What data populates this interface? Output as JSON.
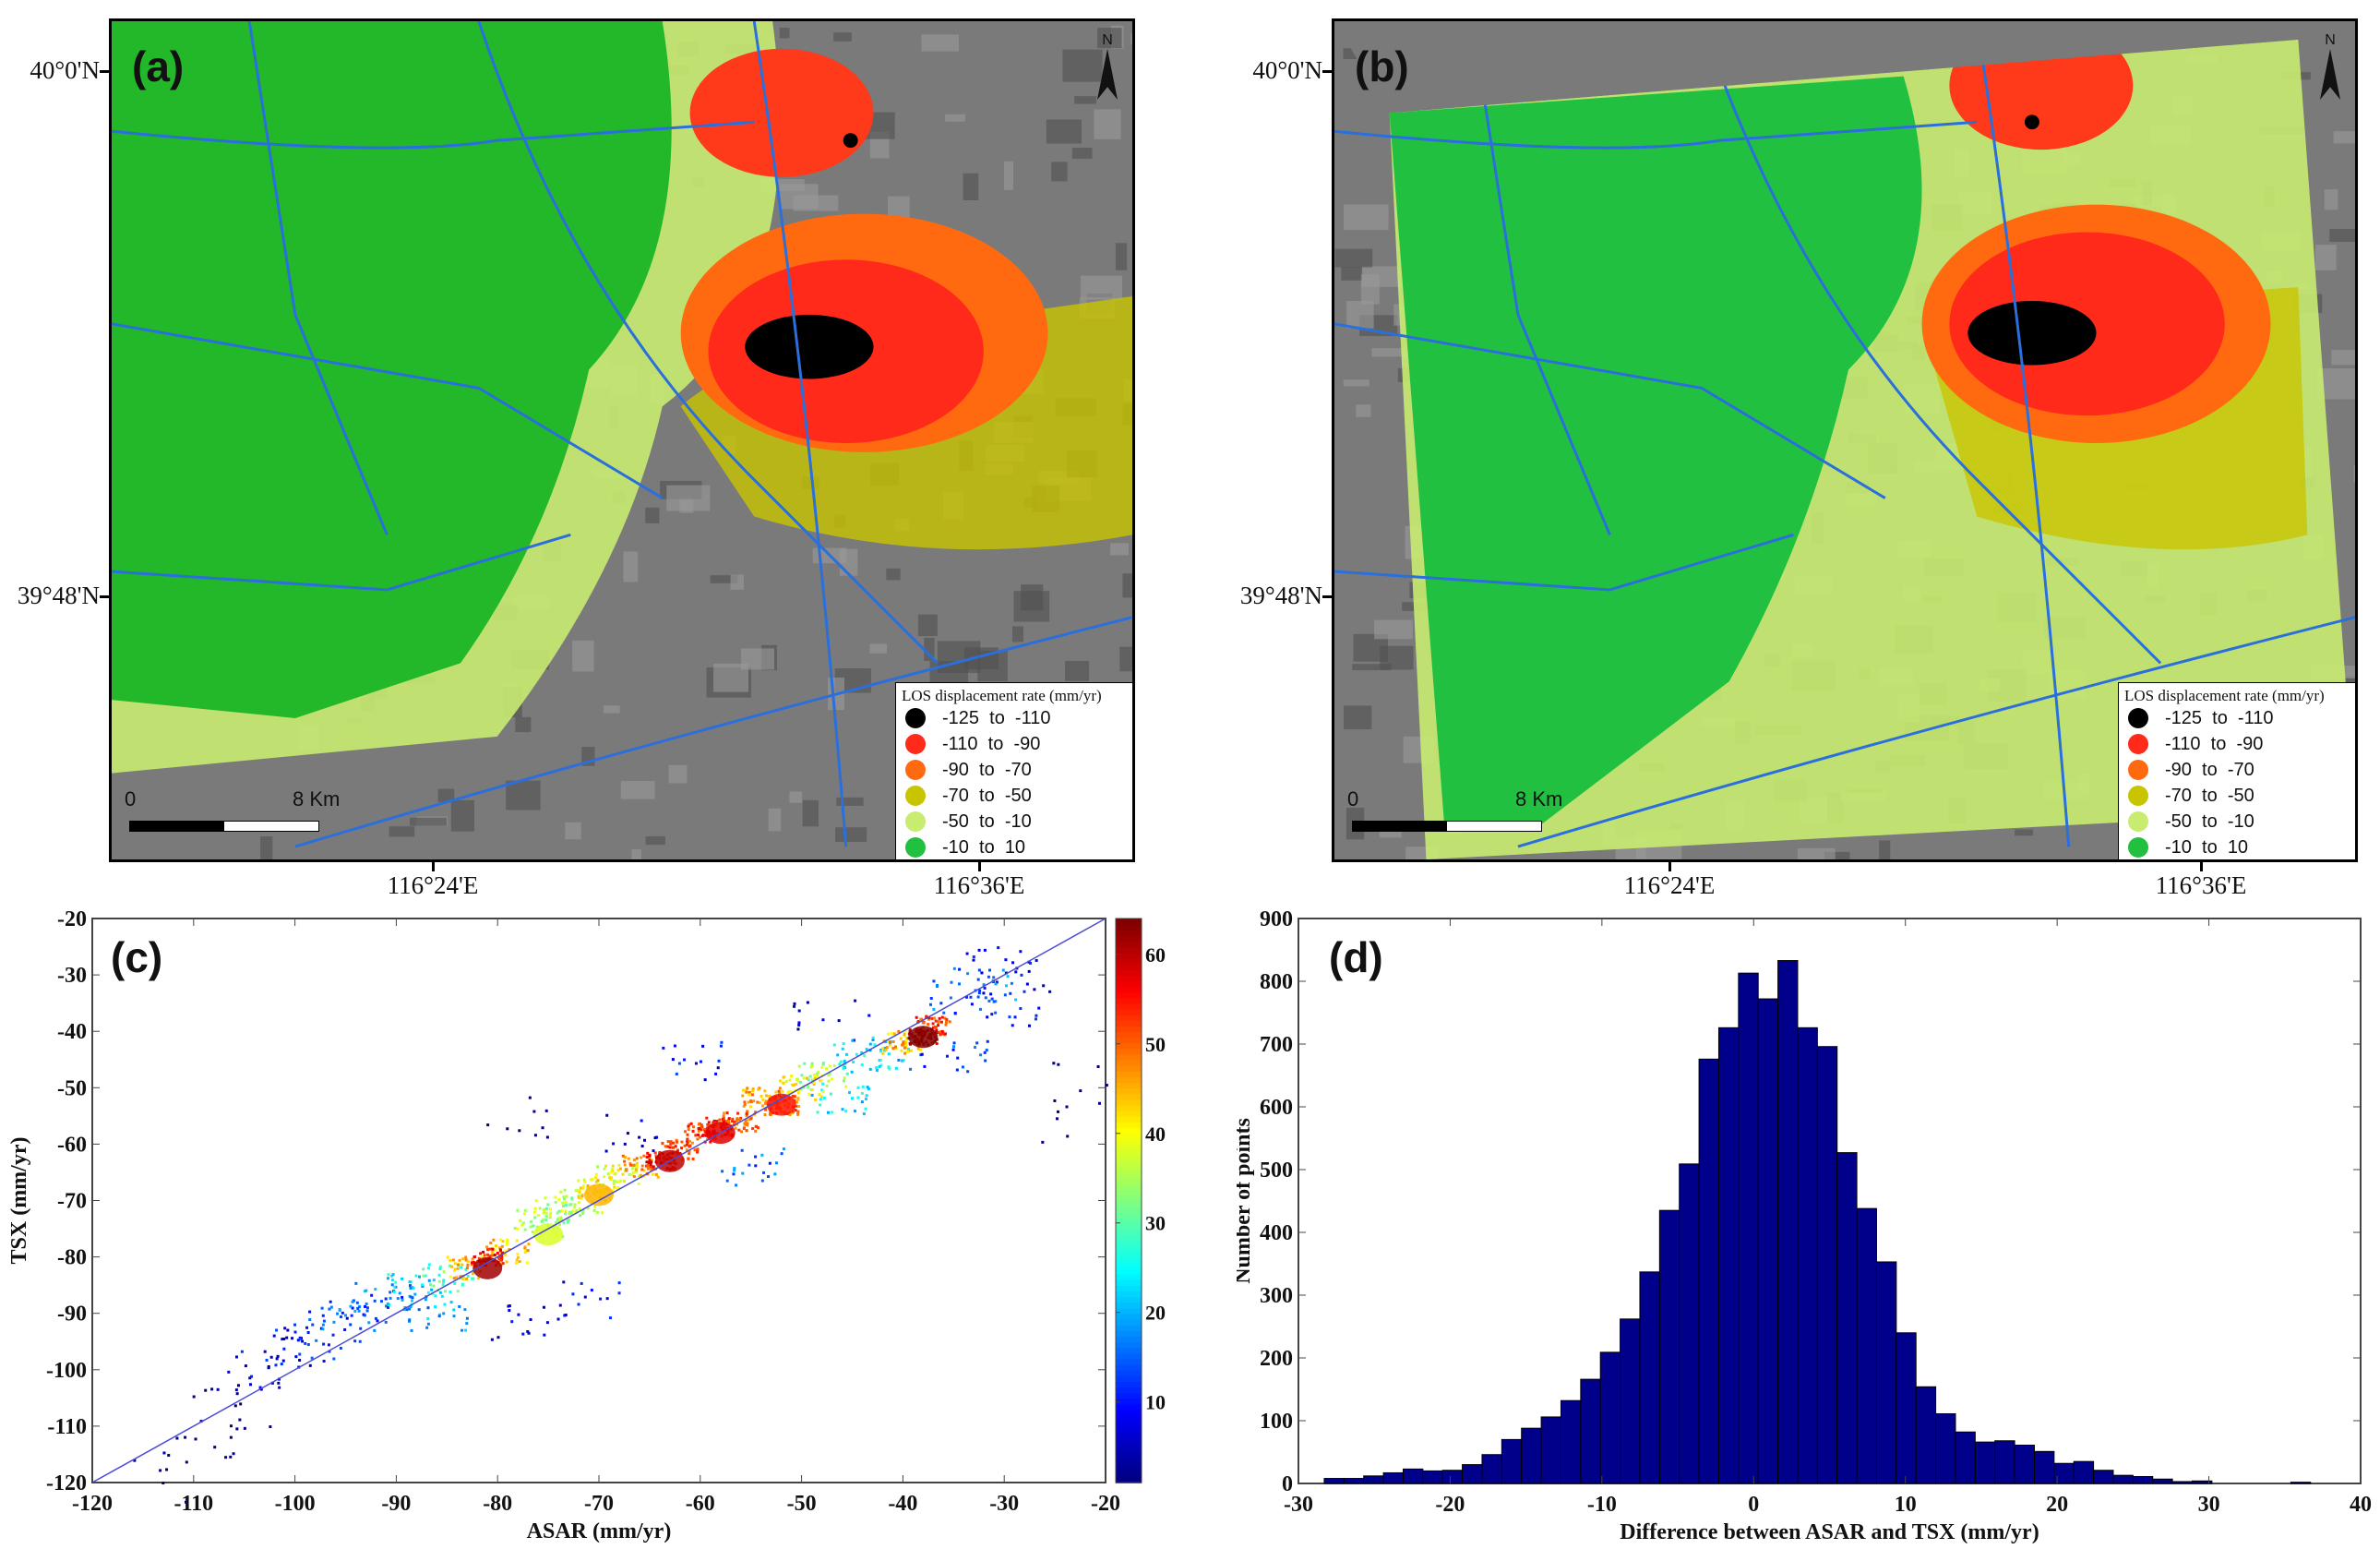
{
  "maps": [
    {
      "panel_label": "(a)",
      "lat_ticks": [
        "40°0'N",
        "39°48'N"
      ],
      "lon_ticks": [
        "116°24'E",
        "116°36'E"
      ],
      "north_label": "N",
      "scale": {
        "start": "0",
        "end": "8 Km"
      },
      "coverage": "full"
    },
    {
      "panel_label": "(b)",
      "lat_ticks": [
        "40°0'N",
        "39°48'N"
      ],
      "lon_ticks": [
        "116°24'E",
        "116°36'E"
      ],
      "north_label": "N",
      "scale": {
        "start": "0",
        "end": "8 Km"
      },
      "coverage": "tilted-swath"
    }
  ],
  "legend": {
    "title": "LOS displacement rate (mm/yr)",
    "items": [
      {
        "label": "-125  to  -110",
        "color": "#000000"
      },
      {
        "label": "-110  to  -90",
        "color": "#ff2a1a"
      },
      {
        "label": "-90  to  -70",
        "color": "#ff6a10"
      },
      {
        "label": "-70  to  -50",
        "color": "#c8c400"
      },
      {
        "label": "-50  to  -10",
        "color": "#c8ec70"
      },
      {
        "label": "-10  to  10",
        "color": "#22c040"
      }
    ]
  },
  "chart_data": [
    {
      "type": "scatter",
      "panel_label": "(c)",
      "xlabel": "ASAR (mm/yr)",
      "ylabel": "TSX (mm/yr)",
      "xlim": [
        -120,
        -20
      ],
      "ylim": [
        -120,
        -20
      ],
      "xticks": [
        "-120",
        "-110",
        "-100",
        "-90",
        "-80",
        "-70",
        "-60",
        "-50",
        "-40",
        "-30",
        "-20"
      ],
      "yticks": [
        "-20",
        "-30",
        "-40",
        "-50",
        "-60",
        "-70",
        "-80",
        "-90",
        "-100",
        "-110",
        "-120"
      ],
      "reference_line": {
        "from": [
          -120,
          -120
        ],
        "to": [
          -20,
          -20
        ],
        "color": "#4b4bd6"
      },
      "colorbar": {
        "range": [
          1,
          64
        ],
        "ticks": [
          "10",
          "20",
          "30",
          "40",
          "50",
          "60"
        ],
        "colormap": "jet"
      },
      "hotspots": [
        {
          "x": -81,
          "y": -82,
          "density": 62
        },
        {
          "x": -63,
          "y": -63,
          "density": 60
        },
        {
          "x": -58,
          "y": -58,
          "density": 58
        },
        {
          "x": -52,
          "y": -53,
          "density": 55
        },
        {
          "x": -38,
          "y": -41,
          "density": 64
        },
        {
          "x": -70,
          "y": -69,
          "density": 45
        },
        {
          "x": -75,
          "y": -76,
          "density": 38
        }
      ],
      "points_sample": [
        [
          -112,
          -120,
          3
        ],
        [
          -110,
          -112,
          5
        ],
        [
          -108,
          -106,
          6
        ],
        [
          -106,
          -111,
          4
        ],
        [
          -104,
          -101,
          10
        ],
        [
          -102,
          -98,
          12
        ],
        [
          -100,
          -96,
          14
        ],
        [
          -98,
          -95,
          16
        ],
        [
          -96,
          -92,
          18
        ],
        [
          -94,
          -91,
          20
        ],
        [
          -92,
          -88,
          18
        ],
        [
          -90,
          -88,
          22
        ],
        [
          -88,
          -86,
          28
        ],
        [
          -86,
          -90,
          24
        ],
        [
          -85,
          -84,
          35
        ],
        [
          -83,
          -82,
          50
        ],
        [
          -81,
          -80,
          60
        ],
        [
          -79,
          -79,
          48
        ],
        [
          -78,
          -55,
          6
        ],
        [
          -77,
          -92,
          12
        ],
        [
          -76,
          -74,
          40
        ],
        [
          -74,
          -72,
          40
        ],
        [
          -72,
          -70,
          42
        ],
        [
          -71,
          -88,
          14
        ],
        [
          -70,
          -68,
          46
        ],
        [
          -68,
          -66,
          44
        ],
        [
          -68,
          -58,
          10
        ],
        [
          -66,
          -64,
          52
        ],
        [
          -64,
          -63,
          60
        ],
        [
          -62,
          -61,
          56
        ],
        [
          -61,
          -45,
          14
        ],
        [
          -60,
          -58,
          58
        ],
        [
          -58,
          -57,
          58
        ],
        [
          -56,
          -56,
          55
        ],
        [
          -55,
          -64,
          20
        ],
        [
          -54,
          -52,
          52
        ],
        [
          -52,
          -53,
          55
        ],
        [
          -50,
          -50,
          46
        ],
        [
          -48,
          -48,
          40
        ],
        [
          -47,
          -38,
          10
        ],
        [
          -46,
          -52,
          28
        ],
        [
          -44,
          -45,
          30
        ],
        [
          -42,
          -44,
          26
        ],
        [
          -40,
          -42,
          50
        ],
        [
          -38,
          -41,
          64
        ],
        [
          -37,
          -39,
          58
        ],
        [
          -35,
          -45,
          18
        ],
        [
          -34,
          -34,
          20
        ],
        [
          -32,
          -32,
          22
        ],
        [
          -31,
          -28,
          12
        ],
        [
          -30,
          -36,
          14
        ],
        [
          -29,
          -30,
          10
        ],
        [
          -27,
          -56,
          2
        ],
        [
          -22,
          -49,
          2
        ]
      ]
    },
    {
      "type": "bar",
      "panel_label": "(d)",
      "xlabel": "Difference between ASAR and TSX (mm/yr)",
      "ylabel": "Number of points",
      "xlim": [
        -30,
        40
      ],
      "ylim": [
        0,
        900
      ],
      "xticks": [
        "-30",
        "-20",
        "-10",
        "0",
        "10",
        "20",
        "30",
        "40"
      ],
      "yticks": [
        "0",
        "100",
        "200",
        "300",
        "400",
        "500",
        "600",
        "700",
        "800",
        "900"
      ],
      "bin_start": -28.3,
      "bin_width": 1.3,
      "counts": [
        8,
        8,
        12,
        17,
        23,
        20,
        21,
        30,
        46,
        70,
        88,
        106,
        132,
        166,
        209,
        262,
        337,
        435,
        509,
        676,
        726,
        813,
        772,
        833,
        726,
        696,
        527,
        438,
        353,
        240,
        154,
        111,
        82,
        66,
        68,
        61,
        51,
        32,
        35,
        21,
        13,
        11,
        7,
        3,
        4,
        0,
        0,
        0,
        0,
        2
      ],
      "bar_color": "#00008b"
    }
  ]
}
